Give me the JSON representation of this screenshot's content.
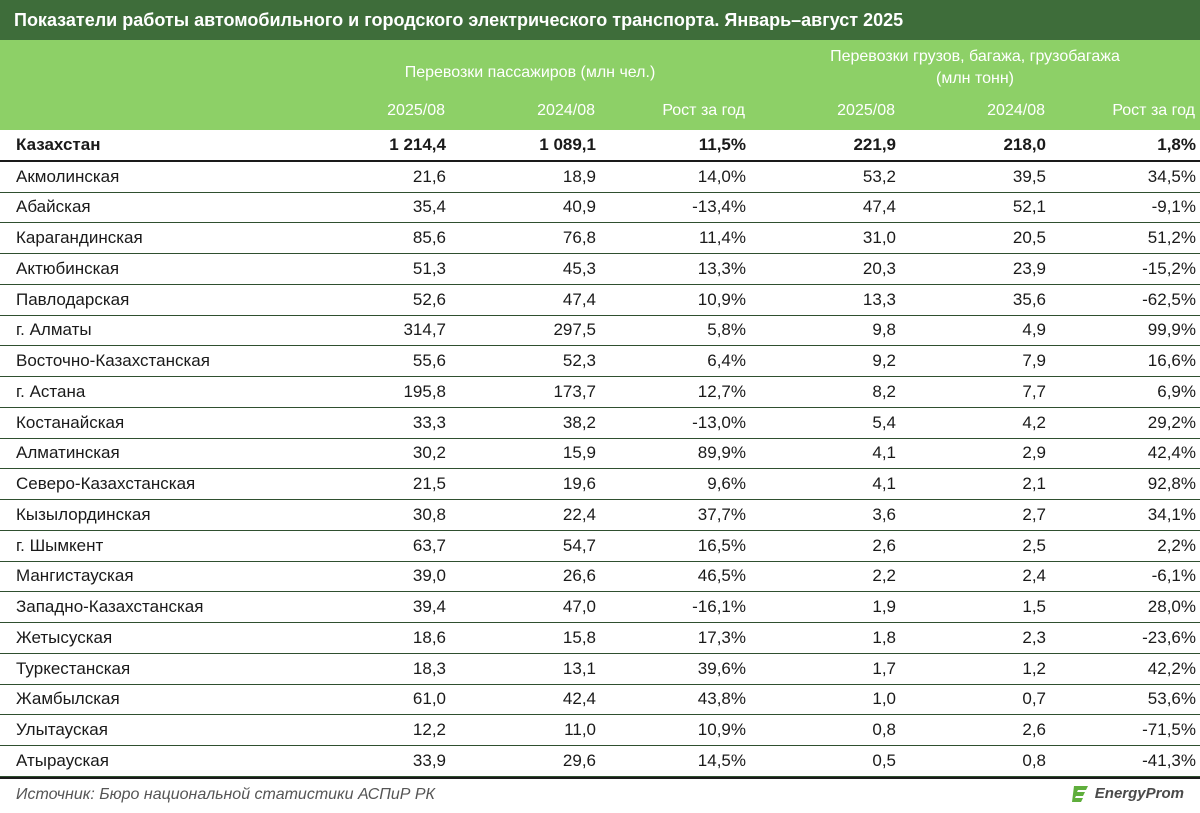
{
  "title": "Показатели работы автомобильного и городского электрического транспорта. Январь–август 2025",
  "header": {
    "passengers_group": "Перевозки пассажиров (млн чел.)",
    "cargo_group_line1": "Перевозки грузов, багажа, грузобагажа",
    "cargo_group_line2": "(млн тонн)",
    "columns": [
      "2025/08",
      "2024/08",
      "Рост за год",
      "2025/08",
      "2024/08",
      "Рост за год"
    ]
  },
  "rows": [
    {
      "name": "Казахстан",
      "p25": "1 214,4",
      "p24": "1 089,1",
      "pg": "11,5%",
      "c25": "221,9",
      "c24": "218,0",
      "cg": "1,8%"
    },
    {
      "name": "Акмолинская",
      "p25": "21,6",
      "p24": "18,9",
      "pg": "14,0%",
      "c25": "53,2",
      "c24": "39,5",
      "cg": "34,5%"
    },
    {
      "name": "Абайская",
      "p25": "35,4",
      "p24": "40,9",
      "pg": "-13,4%",
      "c25": "47,4",
      "c24": "52,1",
      "cg": "-9,1%"
    },
    {
      "name": "Карагандинская",
      "p25": "85,6",
      "p24": "76,8",
      "pg": "11,4%",
      "c25": "31,0",
      "c24": "20,5",
      "cg": "51,2%"
    },
    {
      "name": "Актюбинская",
      "p25": "51,3",
      "p24": "45,3",
      "pg": "13,3%",
      "c25": "20,3",
      "c24": "23,9",
      "cg": "-15,2%"
    },
    {
      "name": "Павлодарская",
      "p25": "52,6",
      "p24": "47,4",
      "pg": "10,9%",
      "c25": "13,3",
      "c24": "35,6",
      "cg": "-62,5%"
    },
    {
      "name": "г. Алматы",
      "p25": "314,7",
      "p24": "297,5",
      "pg": "5,8%",
      "c25": "9,8",
      "c24": "4,9",
      "cg": "99,9%"
    },
    {
      "name": "Восточно-Казахстанская",
      "p25": "55,6",
      "p24": "52,3",
      "pg": "6,4%",
      "c25": "9,2",
      "c24": "7,9",
      "cg": "16,6%"
    },
    {
      "name": "г. Астана",
      "p25": "195,8",
      "p24": "173,7",
      "pg": "12,7%",
      "c25": "8,2",
      "c24": "7,7",
      "cg": "6,9%"
    },
    {
      "name": "Костанайская",
      "p25": "33,3",
      "p24": "38,2",
      "pg": "-13,0%",
      "c25": "5,4",
      "c24": "4,2",
      "cg": "29,2%"
    },
    {
      "name": "Алматинская",
      "p25": "30,2",
      "p24": "15,9",
      "pg": "89,9%",
      "c25": "4,1",
      "c24": "2,9",
      "cg": "42,4%"
    },
    {
      "name": "Северо-Казахстанская",
      "p25": "21,5",
      "p24": "19,6",
      "pg": "9,6%",
      "c25": "4,1",
      "c24": "2,1",
      "cg": "92,8%"
    },
    {
      "name": "Кызылординская",
      "p25": "30,8",
      "p24": "22,4",
      "pg": "37,7%",
      "c25": "3,6",
      "c24": "2,7",
      "cg": "34,1%"
    },
    {
      "name": "г. Шымкент",
      "p25": "63,7",
      "p24": "54,7",
      "pg": "16,5%",
      "c25": "2,6",
      "c24": "2,5",
      "cg": "2,2%"
    },
    {
      "name": "Мангистауская",
      "p25": "39,0",
      "p24": "26,6",
      "pg": "46,5%",
      "c25": "2,2",
      "c24": "2,4",
      "cg": "-6,1%"
    },
    {
      "name": "Западно-Казахстанская",
      "p25": "39,4",
      "p24": "47,0",
      "pg": "-16,1%",
      "c25": "1,9",
      "c24": "1,5",
      "cg": "28,0%"
    },
    {
      "name": "Жетысуская",
      "p25": "18,6",
      "p24": "15,8",
      "pg": "17,3%",
      "c25": "1,8",
      "c24": "2,3",
      "cg": "-23,6%"
    },
    {
      "name": "Туркестанская",
      "p25": "18,3",
      "p24": "13,1",
      "pg": "39,6%",
      "c25": "1,7",
      "c24": "1,2",
      "cg": "42,2%"
    },
    {
      "name": "Жамбылская",
      "p25": "61,0",
      "p24": "42,4",
      "pg": "43,8%",
      "c25": "1,0",
      "c24": "0,7",
      "cg": "53,6%"
    },
    {
      "name": "Улытауская",
      "p25": "12,2",
      "p24": "11,0",
      "pg": "10,9%",
      "c25": "0,8",
      "c24": "2,6",
      "cg": "-71,5%"
    },
    {
      "name": "Атырауская",
      "p25": "33,9",
      "p24": "29,6",
      "pg": "14,5%",
      "c25": "0,5",
      "c24": "0,8",
      "cg": "-41,3%"
    }
  ],
  "footer": {
    "source": "Источник: Бюро национальной статистики АСПиР РК",
    "logo_text": "EnergyProm"
  },
  "colors": {
    "title_bg": "#3e6d3a",
    "header_bg": "#8dd067",
    "logo_accent": "#5fae3c"
  },
  "icons": {
    "logo": "energyprom-logo-icon"
  }
}
